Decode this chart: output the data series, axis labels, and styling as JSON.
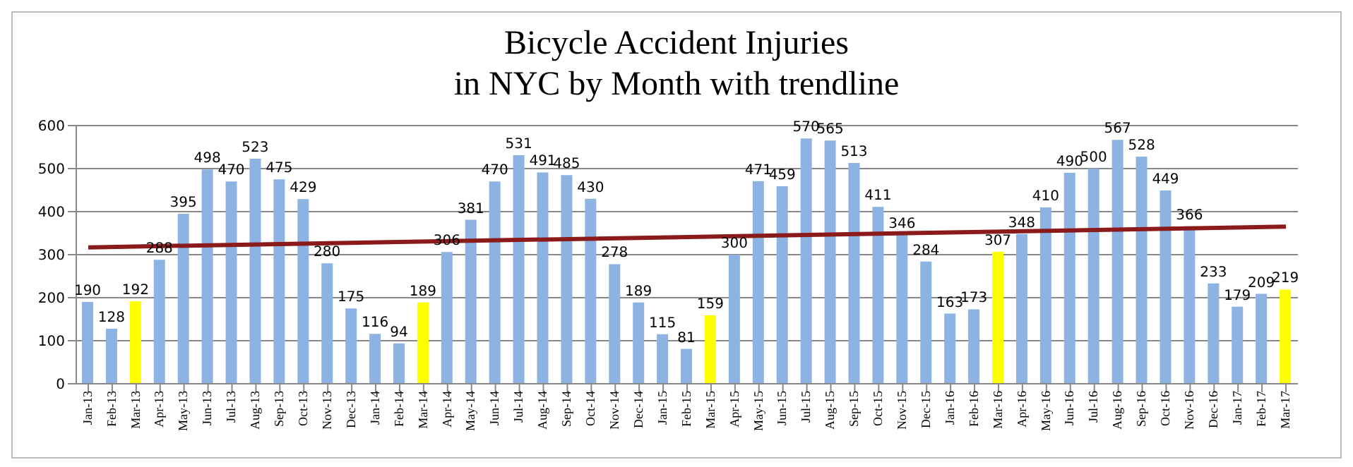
{
  "chart_data": {
    "type": "bar",
    "title": "Bicycle Accident Injuries\nin NYC by Month with trendline",
    "categories": [
      "Jan-13",
      "Feb-13",
      "Mar-13",
      "Apr-13",
      "May-13",
      "Jun-13",
      "Jul-13",
      "Aug-13",
      "Sep-13",
      "Oct-13",
      "Nov-13",
      "Dec-13",
      "Jan-14",
      "Feb-14",
      "Mar-14",
      "Apr-14",
      "May-14",
      "Jun-14",
      "Jul-14",
      "Aug-14",
      "Sep-14",
      "Oct-14",
      "Nov-14",
      "Dec-14",
      "Jan-15",
      "Feb-15",
      "Mar-15",
      "Apr-15",
      "May-15",
      "Jun-15",
      "Jul-15",
      "Aug-15",
      "Sep-15",
      "Oct-15",
      "Nov-15",
      "Dec-15",
      "Jan-16",
      "Feb-16",
      "Mar-16",
      "Apr-16",
      "May-16",
      "Jun-16",
      "Jul-16",
      "Aug-16",
      "Sep-16",
      "Oct-16",
      "Nov-16",
      "Dec-16",
      "Jan-17",
      "Feb-17",
      "Mar-17"
    ],
    "series": [
      {
        "values": [
          190,
          128,
          192,
          288,
          395,
          498,
          470,
          523,
          475,
          429,
          280,
          175,
          116,
          94,
          189,
          306,
          381,
          470,
          531,
          491,
          485,
          430,
          278,
          189,
          115,
          81,
          159,
          300,
          471,
          459,
          570,
          565,
          513,
          411,
          346,
          284,
          163,
          173,
          307,
          348,
          410,
          490,
          500,
          567,
          528,
          449,
          366,
          233,
          179,
          209,
          219
        ],
        "value_labels": [
          "190",
          "128",
          "192",
          "288",
          "395",
          "498",
          "470",
          "523",
          "475",
          "429",
          "280",
          "175",
          "116",
          "94",
          "189",
          "306",
          "381",
          "470",
          "531",
          "491",
          "485",
          "430",
          "278",
          "189",
          "115",
          "81",
          "159",
          "300",
          "471",
          "459",
          "570",
          "565",
          "513",
          "411",
          "346",
          "284",
          "163",
          "173",
          "307",
          "348",
          "410",
          "490",
          "500",
          "567",
          "528",
          "449",
          "366",
          "233",
          "179",
          "209",
          "219"
        ],
        "colors": [
          "#8db3e2",
          "#8db3e2",
          "#ffff00",
          "#8db3e2",
          "#8db3e2",
          "#8db3e2",
          "#8db3e2",
          "#8db3e2",
          "#8db3e2",
          "#8db3e2",
          "#8db3e2",
          "#8db3e2",
          "#8db3e2",
          "#8db3e2",
          "#ffff00",
          "#8db3e2",
          "#8db3e2",
          "#8db3e2",
          "#8db3e2",
          "#8db3e2",
          "#8db3e2",
          "#8db3e2",
          "#8db3e2",
          "#8db3e2",
          "#8db3e2",
          "#8db3e2",
          "#ffff00",
          "#8db3e2",
          "#8db3e2",
          "#8db3e2",
          "#8db3e2",
          "#8db3e2",
          "#8db3e2",
          "#8db3e2",
          "#8db3e2",
          "#8db3e2",
          "#8db3e2",
          "#8db3e2",
          "#ffff00",
          "#8db3e2",
          "#8db3e2",
          "#8db3e2",
          "#8db3e2",
          "#8db3e2",
          "#8db3e2",
          "#8db3e2",
          "#8db3e2",
          "#8db3e2",
          "#8db3e2",
          "#8db3e2",
          "#ffff00"
        ]
      },
      {
        "type": "line",
        "color": "#8b1a1a",
        "x": [
          "Jan-13",
          "Mar-17"
        ],
        "values": [
          317,
          365
        ]
      }
    ],
    "ylim": [
      0,
      600
    ],
    "yticks": [
      0,
      100,
      200,
      300,
      400,
      500,
      600
    ],
    "grid": "y"
  }
}
